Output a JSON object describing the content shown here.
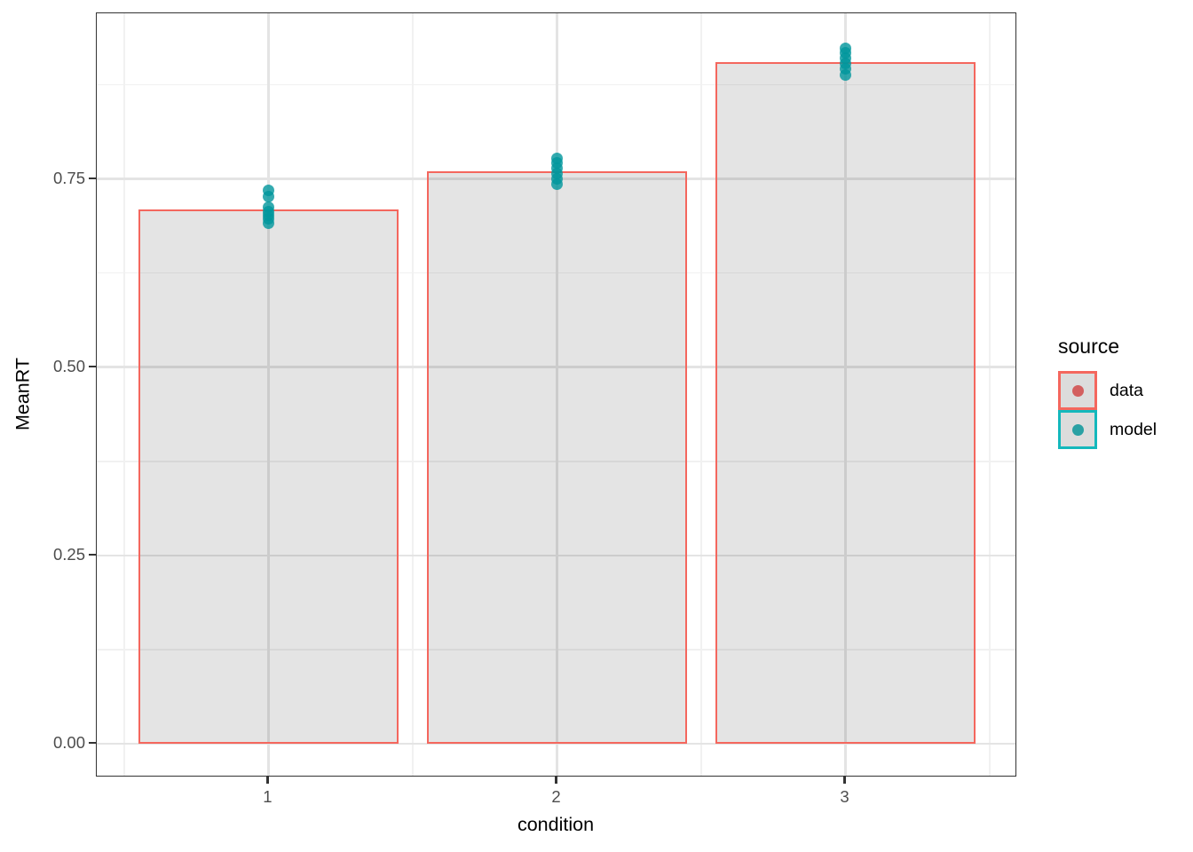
{
  "chart_data": {
    "type": "bar",
    "title": "",
    "xlabel": "condition",
    "ylabel": "MeanRT",
    "categories": [
      "1",
      "2",
      "3"
    ],
    "x_positions": [
      1,
      2,
      3
    ],
    "bar_width": 0.9,
    "series": [
      {
        "name": "data",
        "type": "bar",
        "values": [
          0.71,
          0.76,
          0.905
        ]
      },
      {
        "name": "model",
        "type": "scatter",
        "points": [
          {
            "x": 1,
            "values": [
              0.691,
              0.697,
              0.702,
              0.707,
              0.712,
              0.727,
              0.735
            ]
          },
          {
            "x": 2,
            "values": [
              0.743,
              0.75,
              0.757,
              0.764,
              0.771,
              0.777
            ]
          },
          {
            "x": 3,
            "values": [
              0.888,
              0.896,
              0.903,
              0.91,
              0.917,
              0.924
            ]
          }
        ]
      }
    ],
    "y_ticks": [
      {
        "value": 0.0,
        "label": "0.00"
      },
      {
        "value": 0.25,
        "label": "0.25"
      },
      {
        "value": 0.5,
        "label": "0.50"
      },
      {
        "value": 0.75,
        "label": "0.75"
      }
    ],
    "y_minor_ticks": [
      0.125,
      0.375,
      0.625,
      0.875
    ],
    "x_minor_ticks": [
      0.5,
      1.5,
      2.5,
      3.5
    ],
    "ylim": [
      -0.045,
      0.97
    ],
    "xlim": [
      0.405,
      3.595
    ],
    "grid": true,
    "legend_position": "right"
  },
  "legend": {
    "title": "source",
    "items": [
      {
        "label": "data",
        "color": "#f4675e",
        "dot_color": "#d35f5f"
      },
      {
        "label": "model",
        "color": "#14b8bc",
        "dot_color": "#2aa1a4"
      }
    ]
  },
  "colors": {
    "bar_fill_gray": "#dcdcdc",
    "data_outline_red": "#f4675e",
    "model_teal": "#1ca4a8",
    "gridline_major": "#e4e4e4",
    "gridline_minor": "#f1f1f1",
    "panel_border": "#333333",
    "tick_text": "#4d4d4d"
  }
}
